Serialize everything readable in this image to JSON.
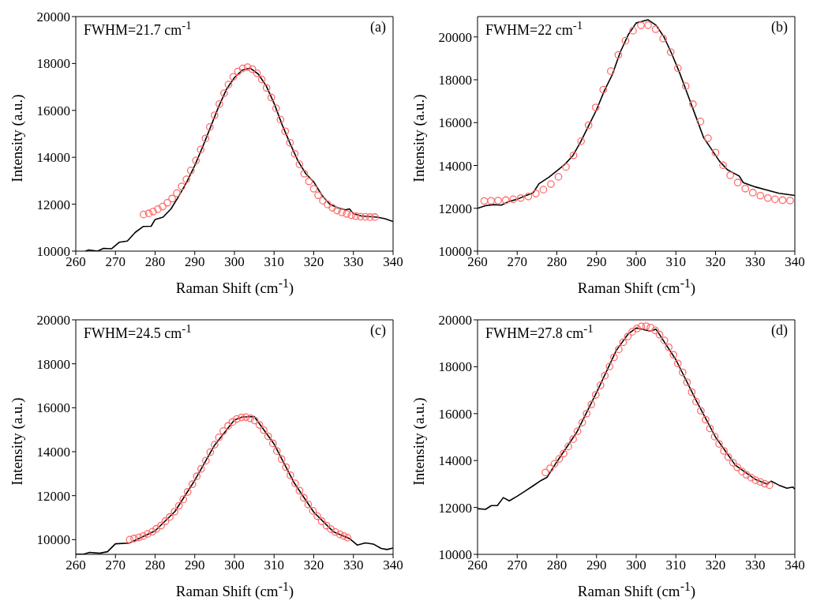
{
  "chart_data": [
    {
      "type": "line",
      "xlabel": "Raman Shift (cm$^{-1}$)",
      "ylabel": "Intensity (a.u.)",
      "annotations": [
        "FWHM=21.7 cm$^{-1}$",
        "(a)"
      ],
      "xlim": [
        260,
        340
      ],
      "xticks": [
        260,
        270,
        280,
        290,
        300,
        310,
        320,
        330,
        340
      ],
      "ylim": [
        10000,
        20000
      ],
      "yticks": [
        10000,
        12000,
        14000,
        16000,
        18000,
        20000
      ],
      "series": [
        {
          "color": "#000000",
          "line_style": "solid",
          "marker": "none",
          "x": [
            262.4,
            263.3,
            265.5,
            267,
            269,
            271,
            273,
            275,
            277,
            279,
            280,
            282,
            284,
            286,
            288,
            290,
            292,
            294,
            296,
            298,
            300,
            302,
            304,
            306,
            308,
            310,
            312,
            314,
            316,
            318,
            320,
            322,
            324,
            326,
            328,
            329,
            330,
            332,
            336,
            338,
            340
          ],
          "values": [
            10000,
            10050,
            10000,
            10120,
            10100,
            10380,
            10430,
            10800,
            11050,
            11060,
            11350,
            11450,
            11800,
            12350,
            12950,
            13650,
            14450,
            15300,
            16150,
            16900,
            17400,
            17720,
            17800,
            17550,
            17050,
            16300,
            15400,
            14600,
            13850,
            13300,
            12950,
            12400,
            12000,
            11850,
            11760,
            11800,
            11600,
            11500,
            11450,
            11380,
            11260
          ]
        },
        {
          "type": "scatter",
          "color": "#ff6b6b",
          "marker": "circle",
          "x": [
            277.1,
            278.4,
            279.5,
            280.7,
            281.9,
            283.1,
            284.3,
            285.5,
            286.7,
            287.9,
            289.0,
            290.3,
            291.5,
            292.7,
            293.8,
            295.0,
            296.2,
            297.4,
            298.5,
            299.7,
            300.9,
            302.1,
            303.3,
            304.5,
            305.7,
            306.9,
            308.1,
            309.3,
            310.5,
            311.6,
            312.8,
            314.0,
            315.2,
            316.4,
            317.6,
            318.8,
            320.0,
            321.1,
            322.3,
            323.5,
            324.7,
            325.9,
            327.1,
            328.3,
            329.5,
            330.6,
            331.8,
            333.0,
            334.2,
            335.4
          ],
          "values": [
            11560,
            11610,
            11690,
            11790,
            11900,
            12060,
            12240,
            12470,
            12760,
            13060,
            13440,
            13860,
            14330,
            14800,
            15290,
            15790,
            16270,
            16730,
            17100,
            17430,
            17660,
            17790,
            17840,
            17760,
            17580,
            17320,
            16960,
            16550,
            16090,
            15610,
            15110,
            14620,
            14150,
            13700,
            13300,
            12970,
            12660,
            12380,
            12150,
            11990,
            11850,
            11730,
            11650,
            11590,
            11530,
            11490,
            11470,
            11460,
            11450,
            11450
          ]
        }
      ]
    },
    {
      "type": "line",
      "xlabel": "Raman Shift (cm$^{-1}$)",
      "ylabel": "Intensity (a.u.)",
      "annotations": [
        "FWHM=22 cm$^{-1}$",
        "(b)"
      ],
      "xlim": [
        260,
        340
      ],
      "xticks": [
        260,
        270,
        280,
        290,
        300,
        310,
        320,
        330,
        340
      ],
      "ylim": [
        10000,
        20950
      ],
      "yticks": [
        10000,
        12000,
        14000,
        16000,
        18000,
        20000
      ],
      "series": [
        {
          "color": "#000000",
          "line_style": "solid",
          "marker": "none",
          "x": [
            260,
            262,
            264,
            266,
            268,
            270,
            272,
            274,
            275.5,
            278,
            280,
            282,
            284,
            286,
            288,
            290,
            292,
            294,
            296,
            298,
            300,
            303,
            305,
            307,
            309,
            311,
            313,
            315,
            317,
            319,
            321,
            323,
            325,
            326,
            327,
            330,
            333,
            336,
            340
          ],
          "values": [
            12000,
            12120,
            12170,
            12150,
            12320,
            12420,
            12580,
            12720,
            13150,
            13450,
            13750,
            14050,
            14450,
            15100,
            15850,
            16600,
            17500,
            18250,
            19300,
            20100,
            20650,
            20800,
            20550,
            20000,
            19200,
            18300,
            17300,
            16300,
            15300,
            14750,
            14200,
            13800,
            13600,
            13500,
            13200,
            13000,
            12850,
            12700,
            12600
          ]
        },
        {
          "type": "scatter",
          "color": "#ff6b6b",
          "marker": "circle",
          "x": [
            261.7,
            263.4,
            265.2,
            267.1,
            269.0,
            270.9,
            272.8,
            274.7,
            276.6,
            278.5,
            280.4,
            282.3,
            284.2,
            286.1,
            288.0,
            289.8,
            291.7,
            293.6,
            295.5,
            297.3,
            299.2,
            301.2,
            303.0,
            304.9,
            306.8,
            308.7,
            310.5,
            312.5,
            314.3,
            316.2,
            318.1,
            320.0,
            321.9,
            323.7,
            325.6,
            327.5,
            329.4,
            331.3,
            333.2,
            335.0,
            336.9,
            338.8
          ],
          "values": [
            12340,
            12350,
            12360,
            12380,
            12420,
            12480,
            12550,
            12690,
            12870,
            13130,
            13470,
            13930,
            14470,
            15130,
            15880,
            16710,
            17540,
            18400,
            19160,
            19820,
            20290,
            20540,
            20550,
            20360,
            19920,
            19290,
            18540,
            17700,
            16860,
            16050,
            15270,
            14600,
            14010,
            13540,
            13200,
            12920,
            12730,
            12590,
            12480,
            12420,
            12380,
            12360
          ]
        }
      ]
    },
    {
      "type": "line",
      "xlabel": "Raman Shift (cm$^{-1}$)",
      "ylabel": "Intensity (a.u.)",
      "annotations": [
        "FWHM=24.5 cm$^{-1}$",
        "(c)"
      ],
      "xlim": [
        260,
        340
      ],
      "xticks": [
        260,
        270,
        280,
        290,
        300,
        310,
        320,
        330,
        340
      ],
      "ylim": [
        9330,
        20000
      ],
      "yticks": [
        10000,
        12000,
        14000,
        16000,
        18000,
        20000
      ],
      "series": [
        {
          "color": "#000000",
          "line_style": "solid",
          "marker": "none",
          "x": [
            260,
            262,
            263.5,
            266,
            268,
            270,
            273.5,
            280,
            285,
            290,
            295,
            300,
            302,
            305,
            310,
            315,
            320,
            325,
            329,
            331,
            333,
            335,
            337,
            338.5,
            340
          ],
          "values": [
            9340,
            9340,
            9420,
            9380,
            9450,
            9810,
            9840,
            10400,
            11280,
            12700,
            14300,
            15450,
            15580,
            15600,
            14350,
            12600,
            11250,
            10350,
            10050,
            9750,
            9850,
            9800,
            9600,
            9550,
            9620
          ]
        },
        {
          "type": "scatter",
          "color": "#ff6b6b",
          "marker": "circle",
          "x": [
            273.6,
            274.7,
            275.9,
            277.0,
            278.1,
            279.3,
            280.3,
            281.5,
            282.6,
            283.7,
            284.9,
            286.0,
            287.1,
            288.2,
            289.4,
            290.5,
            291.6,
            292.8,
            293.9,
            295.0,
            296.1,
            297.2,
            298.4,
            299.5,
            300.6,
            301.8,
            302.9,
            304.0,
            305.1,
            306.3,
            307.4,
            308.5,
            309.7,
            310.7,
            311.9,
            313.0,
            314.1,
            315.3,
            316.4,
            317.5,
            318.6,
            319.8,
            320.9,
            322.0,
            323.2,
            324.3,
            325.4,
            326.6,
            327.6,
            328.5
          ],
          "values": [
            10000,
            10050,
            10100,
            10160,
            10260,
            10360,
            10490,
            10640,
            10840,
            11030,
            11270,
            11540,
            11830,
            12170,
            12520,
            12880,
            13220,
            13590,
            13980,
            14320,
            14650,
            14940,
            15170,
            15350,
            15490,
            15560,
            15570,
            15520,
            15420,
            15220,
            14980,
            14700,
            14380,
            14030,
            13660,
            13300,
            12930,
            12560,
            12230,
            11900,
            11600,
            11310,
            11070,
            10840,
            10640,
            10480,
            10350,
            10240,
            10160,
            10090
          ]
        }
      ]
    },
    {
      "type": "line",
      "xlabel": "Raman Shift (cm$^{-1}$)",
      "ylabel": "Intensity (a.u.)",
      "annotations": [
        "FWHM=27.8 cm$^{-1}$",
        "(d)"
      ],
      "xlim": [
        260,
        340
      ],
      "xticks": [
        260,
        270,
        280,
        290,
        300,
        310,
        320,
        330,
        340
      ],
      "ylim": [
        10000,
        20000
      ],
      "yticks": [
        10000,
        12000,
        14000,
        16000,
        18000,
        20000
      ],
      "series": [
        {
          "color": "#000000",
          "line_style": "solid",
          "marker": "none",
          "x": [
            260,
            262,
            263.5,
            265,
            266.5,
            268,
            270,
            272,
            274,
            276,
            277.5,
            280,
            285,
            290,
            295,
            298,
            300,
            301.5,
            303.5,
            305,
            310,
            315,
            320,
            325,
            330,
            333,
            334,
            336,
            338,
            339.5,
            340
          ],
          "values": [
            11950,
            11920,
            12080,
            12080,
            12420,
            12280,
            12480,
            12700,
            12920,
            13150,
            13280,
            13950,
            15200,
            16900,
            18700,
            19400,
            19650,
            19600,
            19520,
            19600,
            18300,
            16600,
            15000,
            13800,
            13200,
            13000,
            13120,
            12950,
            12820,
            12870,
            12780
          ]
        },
        {
          "type": "scatter",
          "color": "#ff6b6b",
          "marker": "circle",
          "x": [
            277.1,
            278.3,
            279.4,
            280.6,
            281.7,
            282.9,
            284.1,
            285.2,
            286.4,
            287.5,
            288.7,
            289.8,
            291.0,
            292.1,
            293.3,
            294.4,
            295.6,
            296.7,
            297.9,
            299.0,
            300.2,
            301.3,
            302.5,
            303.6,
            304.8,
            305.9,
            307.1,
            308.2,
            309.4,
            310.5,
            311.7,
            312.8,
            314.0,
            315.1,
            316.3,
            317.5,
            318.6,
            319.8,
            320.9,
            322.1,
            323.2,
            324.4,
            325.5,
            326.7,
            327.8,
            329.0,
            330.1,
            331.3,
            332.4,
            333.6
          ],
          "values": [
            13490,
            13670,
            13860,
            14070,
            14300,
            14600,
            14910,
            15250,
            15620,
            16000,
            16390,
            16800,
            17210,
            17620,
            18010,
            18400,
            18740,
            19040,
            19290,
            19490,
            19630,
            19720,
            19730,
            19670,
            19550,
            19370,
            19120,
            18830,
            18510,
            18140,
            17760,
            17340,
            16920,
            16510,
            16120,
            15740,
            15370,
            15020,
            14710,
            14410,
            14150,
            13910,
            13710,
            13530,
            13390,
            13270,
            13160,
            13090,
            13010,
            12950
          ]
        }
      ]
    }
  ]
}
